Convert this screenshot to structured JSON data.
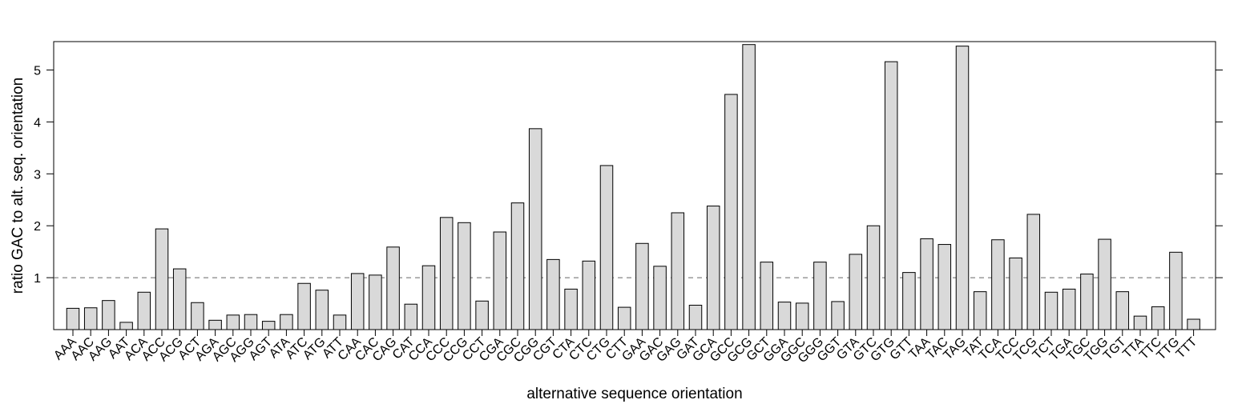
{
  "chart_data": {
    "type": "bar",
    "title": "",
    "xlabel": "alternative sequence orientation",
    "ylabel": "ratio GAC to alt. seq. orientation",
    "ylim": [
      0,
      5.55
    ],
    "yticks": [
      1,
      2,
      3,
      4,
      5
    ],
    "grid": false,
    "reference_line": {
      "y": 1,
      "style": "dashed"
    },
    "bar_color": "#d9d9d9",
    "categories": [
      "AAA",
      "AAC",
      "AAG",
      "AAT",
      "ACA",
      "ACC",
      "ACG",
      "ACT",
      "AGA",
      "AGC",
      "AGG",
      "AGT",
      "ATA",
      "ATC",
      "ATG",
      "ATT",
      "CAA",
      "CAC",
      "CAG",
      "CAT",
      "CCA",
      "CCC",
      "CCG",
      "CCT",
      "CGA",
      "CGC",
      "CGG",
      "CGT",
      "CTA",
      "CTC",
      "CTG",
      "CTT",
      "GAA",
      "GAC",
      "GAG",
      "GAT",
      "GCA",
      "GCC",
      "GCG",
      "GCT",
      "GGA",
      "GGC",
      "GGG",
      "GGT",
      "GTA",
      "GTC",
      "GTG",
      "GTT",
      "TAA",
      "TAC",
      "TAG",
      "TAT",
      "TCA",
      "TCC",
      "TCG",
      "TCT",
      "TGA",
      "TGC",
      "TGG",
      "TGT",
      "TTA",
      "TTC",
      "TTG",
      "TTT"
    ],
    "values": [
      0.41,
      0.42,
      0.56,
      0.14,
      0.72,
      1.94,
      1.17,
      0.52,
      0.18,
      0.28,
      0.29,
      0.16,
      0.29,
      0.89,
      0.76,
      0.28,
      1.08,
      1.05,
      1.59,
      0.49,
      1.23,
      2.16,
      2.06,
      0.55,
      1.88,
      2.44,
      3.87,
      1.35,
      0.78,
      1.32,
      3.16,
      0.43,
      1.66,
      1.22,
      2.25,
      0.47,
      2.38,
      4.53,
      5.49,
      1.3,
      0.53,
      0.51,
      1.3,
      0.54,
      1.45,
      2.0,
      5.16,
      1.1,
      1.75,
      1.64,
      5.46,
      0.73,
      1.73,
      1.38,
      2.22,
      0.72,
      0.78,
      1.07,
      1.74,
      0.73,
      0.26,
      0.44,
      1.49,
      0.2
    ]
  }
}
